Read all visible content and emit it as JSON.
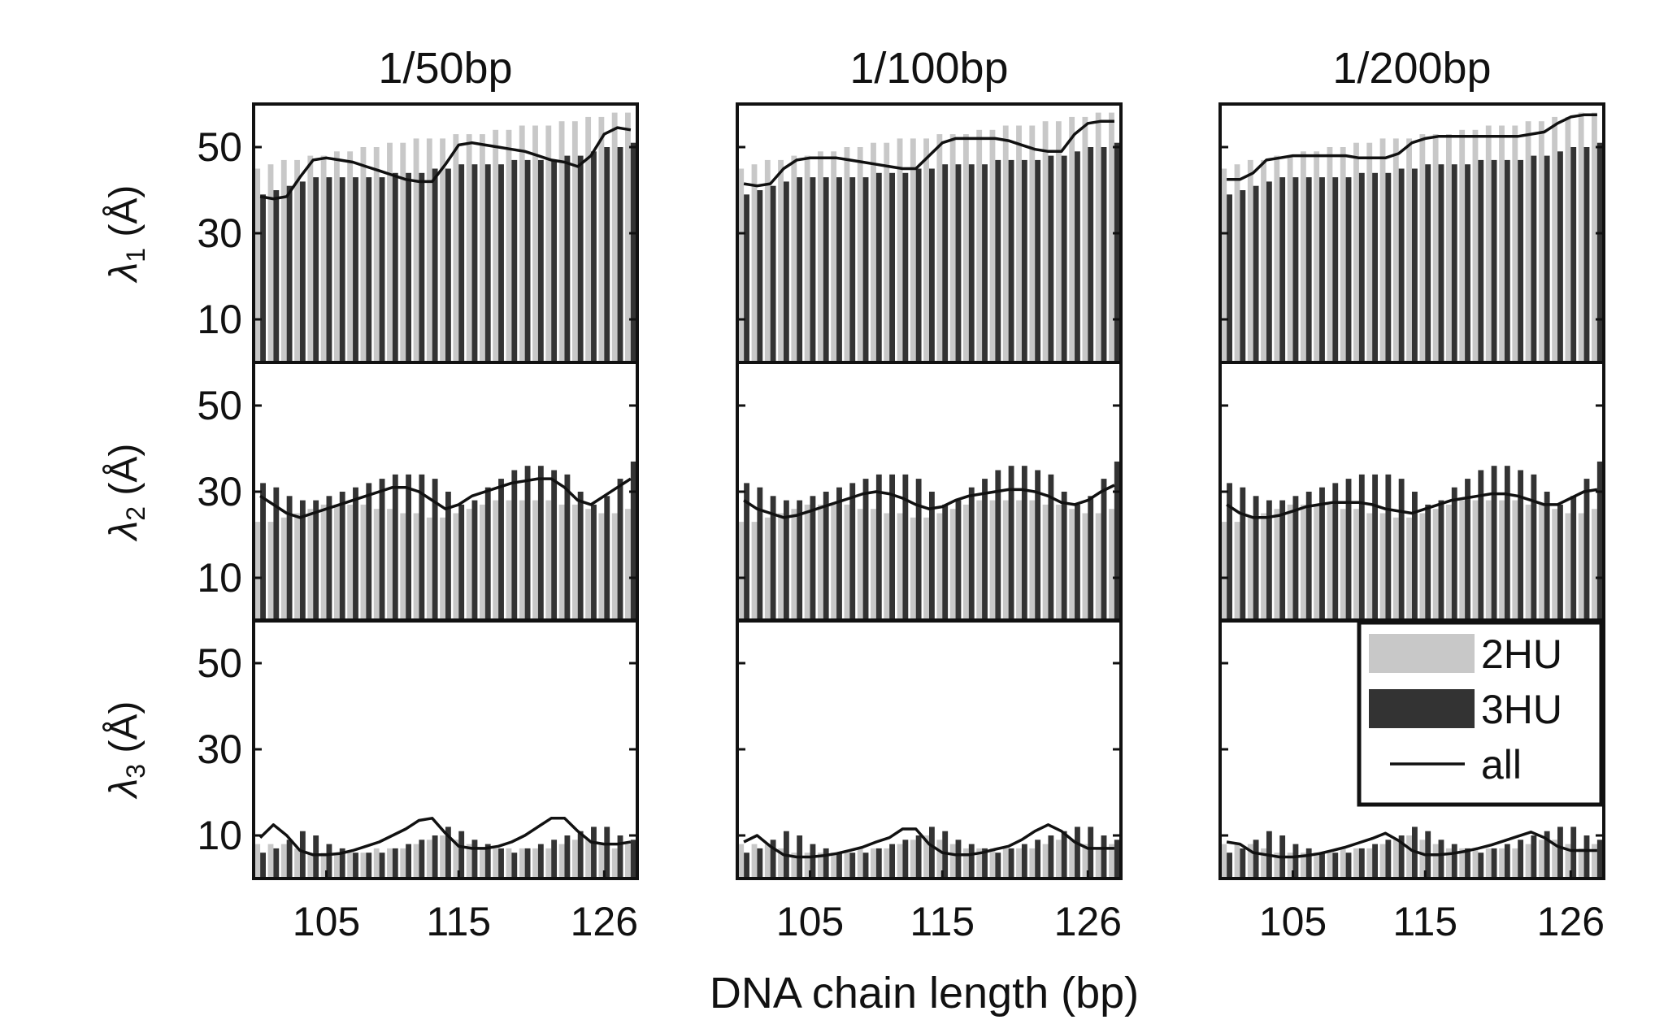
{
  "figure": {
    "xlabel": "DNA chain length (bp)",
    "colors": {
      "2HU": "#c8c8c8",
      "3HU": "#333333",
      "all": "#111111",
      "axis": "#111111"
    }
  },
  "legend": {
    "position": "bottom-right panel, upper-right corner",
    "items": [
      {
        "label": "2HU",
        "style": "light-gray-bar"
      },
      {
        "label": "3HU",
        "style": "dark-gray-bar"
      },
      {
        "label": "all",
        "style": "black-line"
      }
    ]
  },
  "chart_data": {
    "type": "bar",
    "layout": "3 rows x 3 columns of small multiples",
    "x": [
      100,
      101,
      102,
      103,
      104,
      105,
      106,
      107,
      108,
      109,
      110,
      111,
      112,
      113,
      114,
      115,
      116,
      117,
      118,
      119,
      120,
      121,
      122,
      123,
      124,
      125,
      126,
      127,
      128
    ],
    "xticks": [
      105,
      115,
      126
    ],
    "xlabel": "DNA chain length (bp)",
    "ylim": [
      0,
      60
    ],
    "yticks": [
      10,
      30,
      50
    ],
    "grid": false,
    "columns": [
      {
        "title": "1/50bp"
      },
      {
        "title": "1/100bp"
      },
      {
        "title": "1/200bp"
      }
    ],
    "rows": [
      {
        "ylabel_main": "λ",
        "ylabel_sub": "1",
        "ylabel_unit": " (Å)",
        "series": [
          {
            "name": "2HU",
            "values": [
              45,
              46,
              47,
              47,
              48,
              48,
              49,
              49,
              50,
              50,
              51,
              51,
              52,
              52,
              52,
              53,
              53,
              53,
              54,
              54,
              55,
              55,
              55,
              56,
              56,
              57,
              57,
              58,
              58
            ]
          },
          {
            "name": "3HU",
            "values": [
              39,
              40,
              41,
              42,
              43,
              43,
              43,
              43,
              43,
              43,
              44,
              44,
              44,
              45,
              45,
              46,
              46,
              46,
              46,
              47,
              47,
              47,
              47,
              48,
              48,
              49,
              50,
              50,
              51
            ]
          }
        ],
        "panels": [
          {
            "all": [
              38.5,
              38,
              38.5,
              43,
              47,
              47.5,
              47,
              46.5,
              45.5,
              44.5,
              43.5,
              42.5,
              42,
              42,
              46,
              50.5,
              51,
              50.5,
              50,
              49.5,
              49,
              48,
              47,
              46.5,
              45.5,
              48,
              53,
              54.5,
              54
            ]
          },
          {
            "all": [
              41.5,
              41,
              41.5,
              45,
              47,
              47.5,
              47.5,
              47.5,
              47,
              46.5,
              46,
              45.5,
              45,
              45,
              48,
              51,
              52,
              52,
              52,
              52,
              51.5,
              50.5,
              49.5,
              49,
              49,
              53,
              55.5,
              56,
              56
            ]
          },
          {
            "all": [
              42.5,
              42.5,
              44,
              47,
              47.5,
              48,
              48,
              48,
              48,
              48,
              47.5,
              47.5,
              47.5,
              48.5,
              51,
              52,
              52.5,
              52.5,
              52.5,
              52.5,
              52.5,
              52.5,
              52.5,
              53,
              53.5,
              55.5,
              57,
              57.5,
              57.5
            ]
          }
        ]
      },
      {
        "ylabel_main": "λ",
        "ylabel_sub": "2",
        "ylabel_unit": " (Å)",
        "series": [
          {
            "name": "2HU",
            "values": [
              23,
              23,
              24,
              25,
              26,
              27,
              27,
              27,
              27,
              26,
              26,
              25,
              25,
              24,
              24,
              25,
              26,
              27,
              28,
              28,
              28,
              28,
              28,
              27,
              27,
              26,
              25,
              25,
              26
            ]
          },
          {
            "name": "3HU",
            "values": [
              32,
              31,
              29,
              28,
              28,
              29,
              30,
              31,
              32,
              33,
              34,
              34,
              34,
              33,
              30,
              27,
              28,
              31,
              33,
              35,
              36,
              36,
              35,
              34,
              30,
              27,
              29,
              33,
              37
            ]
          }
        ],
        "panels": [
          {
            "all": [
              29,
              27,
              25,
              24,
              25,
              26,
              27,
              28,
              29,
              30,
              31,
              31,
              30,
              28,
              26,
              27,
              29,
              30,
              31,
              32,
              32.5,
              33,
              33,
              31,
              28,
              27,
              29,
              31,
              33
            ]
          },
          {
            "all": [
              28,
              26,
              25,
              24,
              24.5,
              25.5,
              26.5,
              27.5,
              28.5,
              29.5,
              30,
              29.5,
              28.5,
              27,
              26,
              26.5,
              28,
              29,
              29.5,
              30,
              30.5,
              30.5,
              30,
              29,
              27.5,
              27,
              28,
              30,
              31.5
            ]
          },
          {
            "all": [
              27,
              25,
              24,
              24,
              24.5,
              25.5,
              26.5,
              27,
              27.5,
              27.5,
              27.5,
              27,
              26,
              25.5,
              25,
              26,
              27,
              28,
              28.5,
              29,
              29.5,
              29.5,
              29,
              28,
              27,
              27,
              28.5,
              30,
              30.5
            ]
          }
        ]
      },
      {
        "ylabel_main": "λ",
        "ylabel_sub": "3",
        "ylabel_unit": " (Å)",
        "series": [
          {
            "name": "2HU",
            "values": [
              8,
              8,
              8,
              7,
              6,
              6,
              6,
              6,
              6,
              7,
              7,
              7,
              8,
              9,
              10,
              9,
              8,
              7,
              7,
              7,
              7,
              7,
              7,
              8,
              9,
              9,
              8,
              7,
              8
            ]
          },
          {
            "name": "3HU",
            "values": [
              6,
              7,
              9,
              11,
              10,
              8,
              7,
              6,
              6,
              6,
              7,
              8,
              9,
              10,
              12,
              11,
              9,
              8,
              7,
              6,
              7,
              8,
              9,
              10,
              11,
              12,
              12,
              10,
              9
            ]
          }
        ],
        "panels": [
          {
            "all": [
              9.5,
              12.5,
              10,
              6.5,
              5.5,
              5.5,
              5.8,
              6.5,
              7.5,
              8.5,
              10,
              11.5,
              13.5,
              14,
              10.5,
              7.5,
              7,
              7,
              7.5,
              8.5,
              10,
              12,
              14,
              14,
              11,
              8.5,
              8,
              8,
              8.5
            ]
          },
          {
            "all": [
              8.5,
              10,
              7.5,
              5.5,
              5,
              5,
              5.3,
              5.8,
              6.5,
              7.3,
              8.5,
              9.5,
              11.5,
              11.5,
              8,
              6,
              5.5,
              5.5,
              6,
              6.8,
              7.5,
              9,
              11,
              12.5,
              11,
              8.5,
              7,
              7,
              7
            ]
          },
          {
            "all": [
              8.5,
              8,
              6,
              5.5,
              5,
              5,
              5.3,
              5.8,
              6.5,
              7.3,
              8.3,
              9.3,
              10.5,
              8.8,
              6.5,
              5.5,
              5.5,
              5.8,
              6.3,
              7,
              7.8,
              8.8,
              9.8,
              10.8,
              9.5,
              7.5,
              6.5,
              6.5,
              6.5
            ]
          }
        ]
      }
    ]
  }
}
